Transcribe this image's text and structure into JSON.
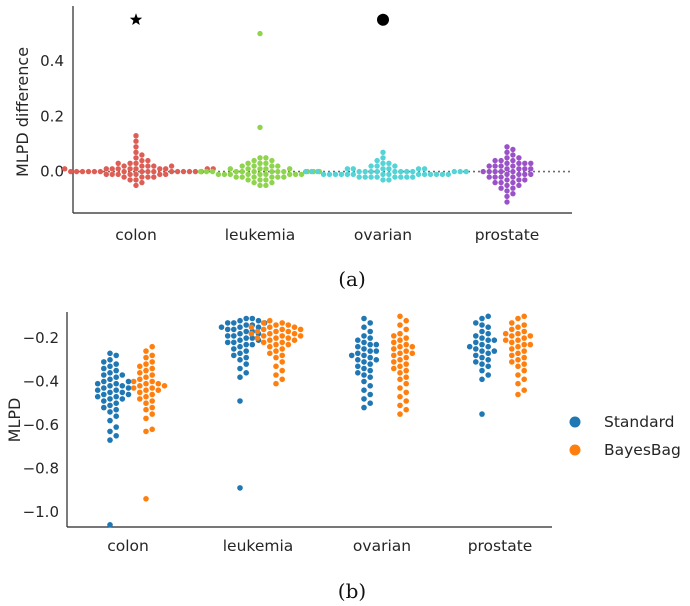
{
  "chart_data": [
    {
      "type": "scatter",
      "subtype": "swarm",
      "caption": "(a)",
      "ylabel": "MLPD difference",
      "categories": [
        "colon",
        "leukemia",
        "ovarian",
        "prostate"
      ],
      "colors": [
        "#dd5e54",
        "#8ed44d",
        "#55d3d6",
        "#9b52c9"
      ],
      "ylim": [
        -0.15,
        0.6
      ],
      "yticks": [
        0.0,
        0.2,
        0.4
      ],
      "ytick_labels": [
        "0.0",
        "0.2",
        "0.4"
      ],
      "zero_line": true,
      "grid": false,
      "values": [
        [
          0.13,
          0.11,
          0.09,
          0.07,
          0.06,
          0.05,
          0.04,
          0.04,
          0.03,
          0.03,
          0.03,
          0.02,
          0.02,
          0.02,
          0.02,
          0.02,
          0.01,
          0.01,
          0.01,
          0.01,
          0.01,
          0.01,
          0.01,
          0.01,
          0.01,
          0.01,
          0.0,
          0.0,
          0.0,
          0.0,
          0.0,
          0.0,
          0.0,
          0.0,
          0.0,
          0.0,
          0.0,
          0.0,
          0.0,
          0.0,
          0.0,
          0.0,
          -0.01,
          -0.01,
          -0.01,
          -0.01,
          -0.01,
          -0.01,
          -0.01,
          -0.02,
          -0.02,
          -0.02,
          -0.02,
          -0.03,
          -0.03,
          -0.04,
          -0.05
        ],
        [
          0.5,
          0.16,
          0.05,
          0.05,
          0.04,
          0.04,
          0.03,
          0.03,
          0.03,
          0.02,
          0.02,
          0.02,
          0.02,
          0.01,
          0.01,
          0.01,
          0.01,
          0.01,
          0.0,
          0.0,
          0.0,
          0.0,
          0.0,
          0.0,
          0.0,
          0.0,
          0.0,
          0.0,
          0.0,
          0.0,
          -0.01,
          -0.01,
          -0.01,
          -0.01,
          -0.01,
          -0.01,
          -0.01,
          -0.01,
          -0.01,
          -0.02,
          -0.02,
          -0.02,
          -0.02,
          -0.02,
          -0.02,
          -0.03,
          -0.03,
          -0.03,
          -0.04,
          -0.04,
          -0.05,
          -0.05
        ],
        [
          0.07,
          0.05,
          0.04,
          0.03,
          0.03,
          0.02,
          0.02,
          0.02,
          0.01,
          0.01,
          0.01,
          0.01,
          0.01,
          0.01,
          0.0,
          0.0,
          0.0,
          0.0,
          0.0,
          0.0,
          0.0,
          0.0,
          0.0,
          0.0,
          0.0,
          0.0,
          0.0,
          0.0,
          -0.01,
          -0.01,
          -0.01,
          -0.01,
          -0.01,
          -0.01,
          -0.01,
          -0.01,
          -0.01,
          -0.01,
          -0.01,
          -0.01,
          -0.01,
          -0.01,
          -0.02,
          -0.02,
          -0.02,
          -0.02,
          -0.02,
          -0.02,
          -0.02,
          -0.02,
          -0.03,
          -0.03
        ],
        [
          0.09,
          0.08,
          0.07,
          0.06,
          0.05,
          0.05,
          0.04,
          0.04,
          0.04,
          0.03,
          0.03,
          0.03,
          0.03,
          0.02,
          0.02,
          0.02,
          0.02,
          0.01,
          0.01,
          0.01,
          0.01,
          0.0,
          0.0,
          0.0,
          0.0,
          0.0,
          -0.01,
          -0.01,
          -0.01,
          -0.01,
          -0.02,
          -0.02,
          -0.02,
          -0.02,
          -0.03,
          -0.03,
          -0.03,
          -0.04,
          -0.04,
          -0.04,
          -0.05,
          -0.05,
          -0.06,
          -0.06,
          -0.07,
          -0.08,
          -0.09,
          -0.11
        ]
      ],
      "markers": [
        {
          "category": "colon",
          "symbol": "star",
          "y": 0.55,
          "color": "#000000"
        },
        {
          "category": "ovarian",
          "symbol": "circle",
          "y": 0.55,
          "color": "#000000"
        }
      ]
    },
    {
      "type": "scatter",
      "subtype": "swarm",
      "caption": "(b)",
      "ylabel": "MLPD",
      "categories": [
        "colon",
        "leukemia",
        "ovarian",
        "prostate"
      ],
      "ylim": [
        -1.07,
        -0.08
      ],
      "yticks": [
        -0.2,
        -0.4,
        -0.6,
        -0.8,
        -1.0
      ],
      "ytick_labels": [
        "−0.2",
        "−0.4",
        "−0.6",
        "−0.8",
        "−1.0"
      ],
      "grid": false,
      "legend": "right",
      "series": [
        {
          "name": "Standard",
          "color": "#1f77b4",
          "values": [
            [
              -0.27,
              -0.28,
              -0.3,
              -0.31,
              -0.32,
              -0.33,
              -0.34,
              -0.35,
              -0.36,
              -0.37,
              -0.37,
              -0.38,
              -0.39,
              -0.4,
              -0.4,
              -0.41,
              -0.41,
              -0.42,
              -0.42,
              -0.43,
              -0.43,
              -0.44,
              -0.44,
              -0.45,
              -0.45,
              -0.46,
              -0.46,
              -0.47,
              -0.47,
              -0.48,
              -0.48,
              -0.49,
              -0.5,
              -0.51,
              -0.52,
              -0.53,
              -0.54,
              -0.56,
              -0.58,
              -0.61,
              -0.63,
              -0.65,
              -0.67,
              -1.06
            ],
            [
              -0.11,
              -0.11,
              -0.12,
              -0.12,
              -0.13,
              -0.13,
              -0.13,
              -0.14,
              -0.14,
              -0.15,
              -0.15,
              -0.15,
              -0.16,
              -0.16,
              -0.17,
              -0.17,
              -0.18,
              -0.18,
              -0.19,
              -0.19,
              -0.2,
              -0.2,
              -0.21,
              -0.21,
              -0.22,
              -0.22,
              -0.23,
              -0.23,
              -0.24,
              -0.25,
              -0.26,
              -0.27,
              -0.28,
              -0.29,
              -0.3,
              -0.32,
              -0.34,
              -0.36,
              -0.38,
              -0.49,
              -0.89
            ],
            [
              -0.11,
              -0.13,
              -0.15,
              -0.17,
              -0.19,
              -0.2,
              -0.21,
              -0.22,
              -0.23,
              -0.23,
              -0.24,
              -0.25,
              -0.26,
              -0.26,
              -0.27,
              -0.28,
              -0.28,
              -0.29,
              -0.3,
              -0.3,
              -0.31,
              -0.32,
              -0.33,
              -0.34,
              -0.35,
              -0.36,
              -0.37,
              -0.38,
              -0.4,
              -0.42,
              -0.44,
              -0.46,
              -0.48,
              -0.5,
              -0.52
            ],
            [
              -0.1,
              -0.11,
              -0.13,
              -0.14,
              -0.15,
              -0.17,
              -0.18,
              -0.19,
              -0.2,
              -0.21,
              -0.21,
              -0.22,
              -0.23,
              -0.24,
              -0.24,
              -0.25,
              -0.26,
              -0.26,
              -0.27,
              -0.28,
              -0.29,
              -0.3,
              -0.31,
              -0.32,
              -0.33,
              -0.35,
              -0.37,
              -0.39,
              -0.55
            ]
          ]
        },
        {
          "name": "BayesBag",
          "color": "#ff7f0e",
          "values": [
            [
              -0.24,
              -0.26,
              -0.28,
              -0.29,
              -0.31,
              -0.32,
              -0.33,
              -0.34,
              -0.35,
              -0.36,
              -0.37,
              -0.38,
              -0.39,
              -0.4,
              -0.4,
              -0.41,
              -0.41,
              -0.42,
              -0.42,
              -0.43,
              -0.43,
              -0.44,
              -0.44,
              -0.45,
              -0.46,
              -0.47,
              -0.48,
              -0.49,
              -0.5,
              -0.52,
              -0.53,
              -0.55,
              -0.57,
              -0.62,
              -0.63,
              -0.94
            ],
            [
              -0.12,
              -0.13,
              -0.13,
              -0.14,
              -0.14,
              -0.15,
              -0.15,
              -0.15,
              -0.16,
              -0.16,
              -0.16,
              -0.17,
              -0.17,
              -0.17,
              -0.18,
              -0.18,
              -0.18,
              -0.19,
              -0.19,
              -0.19,
              -0.2,
              -0.2,
              -0.2,
              -0.21,
              -0.21,
              -0.22,
              -0.22,
              -0.23,
              -0.23,
              -0.24,
              -0.25,
              -0.26,
              -0.27,
              -0.28,
              -0.29,
              -0.31,
              -0.33,
              -0.35,
              -0.37,
              -0.39,
              -0.41
            ],
            [
              -0.1,
              -0.12,
              -0.14,
              -0.16,
              -0.18,
              -0.19,
              -0.2,
              -0.21,
              -0.22,
              -0.23,
              -0.24,
              -0.24,
              -0.25,
              -0.26,
              -0.27,
              -0.27,
              -0.28,
              -0.29,
              -0.3,
              -0.31,
              -0.32,
              -0.33,
              -0.34,
              -0.35,
              -0.36,
              -0.38,
              -0.39,
              -0.41,
              -0.43,
              -0.45,
              -0.47,
              -0.49,
              -0.51,
              -0.53,
              -0.55
            ],
            [
              -0.1,
              -0.11,
              -0.13,
              -0.14,
              -0.15,
              -0.16,
              -0.17,
              -0.18,
              -0.18,
              -0.19,
              -0.19,
              -0.2,
              -0.21,
              -0.21,
              -0.22,
              -0.23,
              -0.23,
              -0.24,
              -0.25,
              -0.26,
              -0.27,
              -0.28,
              -0.29,
              -0.3,
              -0.31,
              -0.32,
              -0.33,
              -0.35,
              -0.37,
              -0.39,
              -0.41,
              -0.44,
              -0.46
            ]
          ]
        }
      ]
    }
  ]
}
